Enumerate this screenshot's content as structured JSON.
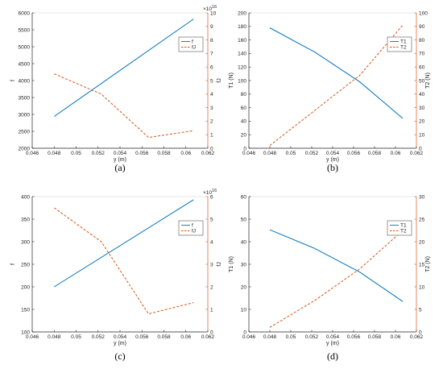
{
  "colors": {
    "blue": "#0072BD",
    "orange": "#D95319",
    "axis": "#222222"
  },
  "chart_data": [
    {
      "type": "line",
      "panel_label": "(a)",
      "xlabel": "y (m)",
      "ylabel_left": "f",
      "ylabel_right": "fJ",
      "right_exponent_base": "×10",
      "right_exponent_power": "16",
      "xlim": [
        0.046,
        0.062
      ],
      "ylim_left": [
        2000,
        6000
      ],
      "ylim_right": [
        0,
        10
      ],
      "xticks": [
        "0.046",
        "0.048",
        "0.05",
        "0.052",
        "0.054",
        "0.056",
        "0.058",
        "0.06",
        "0.062"
      ],
      "yticks_left": [
        "2000",
        "2500",
        "3000",
        "3500",
        "4000",
        "4500",
        "5000",
        "5500",
        "6000"
      ],
      "yticks_right": [
        "0",
        "1",
        "2",
        "3",
        "4",
        "5",
        "6",
        "7",
        "8",
        "9",
        "10"
      ],
      "legend_position": "top-right",
      "series": [
        {
          "name": "f",
          "axis": "left",
          "style": "solid",
          "color": "blue",
          "x": [
            0.048,
            0.0607
          ],
          "y": [
            2940,
            5820
          ]
        },
        {
          "name": "fJ",
          "axis": "right",
          "style": "dashed",
          "color": "orange",
          "x": [
            0.048,
            0.0523,
            0.0566,
            0.0607
          ],
          "y": [
            5.5,
            4.0,
            0.8,
            1.3
          ]
        }
      ]
    },
    {
      "type": "line",
      "panel_label": "(b)",
      "xlabel": "y (m)",
      "ylabel_left": "T1 (N)",
      "ylabel_right": "T2 (N)",
      "xlim": [
        0.046,
        0.062
      ],
      "ylim_left": [
        0,
        200
      ],
      "ylim_right": [
        0,
        100
      ],
      "xticks": [
        "0.046",
        "0.048",
        "0.05",
        "0.052",
        "0.054",
        "0.056",
        "0.058",
        "0.06",
        "0.062"
      ],
      "yticks_left": [
        "0",
        "20",
        "40",
        "60",
        "80",
        "100",
        "120",
        "140",
        "160",
        "180",
        "200"
      ],
      "yticks_right": [
        "0",
        "10",
        "20",
        "30",
        "40",
        "50",
        "60",
        "70",
        "80",
        "90",
        "100"
      ],
      "legend_position": "top-right",
      "series": [
        {
          "name": "T1",
          "axis": "left",
          "style": "solid",
          "color": "blue",
          "x": [
            0.048,
            0.0523,
            0.0566,
            0.0607
          ],
          "y": [
            178,
            142,
            98,
            44
          ]
        },
        {
          "name": "T2",
          "axis": "right",
          "style": "dashed",
          "color": "orange",
          "x": [
            0.048,
            0.0523,
            0.0566,
            0.0607
          ],
          "y": [
            2,
            28,
            54,
            91
          ]
        }
      ]
    },
    {
      "type": "line",
      "panel_label": "(c)",
      "xlabel": "y (m)",
      "ylabel_left": "f",
      "ylabel_right": "fJ",
      "right_exponent_base": "×10",
      "right_exponent_power": "16",
      "xlim": [
        0.046,
        0.062
      ],
      "ylim_left": [
        100,
        400
      ],
      "ylim_right": [
        0,
        6
      ],
      "xticks": [
        "0.046",
        "0.048",
        "0.05",
        "0.052",
        "0.054",
        "0.056",
        "0.058",
        "0.06",
        "0.062"
      ],
      "yticks_left": [
        "100",
        "150",
        "200",
        "250",
        "300",
        "350",
        "400"
      ],
      "yticks_right": [
        "0",
        "1",
        "2",
        "3",
        "4",
        "5",
        "6"
      ],
      "legend_position": "top-right",
      "series": [
        {
          "name": "f",
          "axis": "left",
          "style": "solid",
          "color": "blue",
          "x": [
            0.048,
            0.0607
          ],
          "y": [
            200,
            393
          ]
        },
        {
          "name": "fJ",
          "axis": "right",
          "style": "dashed",
          "color": "orange",
          "x": [
            0.048,
            0.0523,
            0.0566,
            0.0607
          ],
          "y": [
            5.5,
            4.0,
            0.8,
            1.3
          ]
        }
      ]
    },
    {
      "type": "line",
      "panel_label": "(d)",
      "xlabel": "y (m)",
      "ylabel_left": "T1 (N)",
      "ylabel_right": "T2 (N)",
      "xlim": [
        0.046,
        0.062
      ],
      "ylim_left": [
        0,
        60
      ],
      "ylim_right": [
        0,
        30
      ],
      "xticks": [
        "0.046",
        "0.048",
        "0.05",
        "0.052",
        "0.054",
        "0.056",
        "0.058",
        "0.06",
        "0.062"
      ],
      "yticks_left": [
        "0",
        "10",
        "20",
        "30",
        "40",
        "50",
        "60"
      ],
      "yticks_right": [
        "0",
        "5",
        "10",
        "15",
        "20",
        "25",
        "30"
      ],
      "legend_position": "top-right",
      "series": [
        {
          "name": "T1",
          "axis": "left",
          "style": "solid",
          "color": "blue",
          "x": [
            0.048,
            0.0523,
            0.0566,
            0.0607
          ],
          "y": [
            45.3,
            37,
            26.5,
            13.5
          ]
        },
        {
          "name": "T2",
          "axis": "right",
          "style": "dashed",
          "color": "orange",
          "x": [
            0.048,
            0.0523,
            0.0566,
            0.0607
          ],
          "y": [
            1,
            7,
            14,
            22.5
          ]
        }
      ]
    }
  ]
}
